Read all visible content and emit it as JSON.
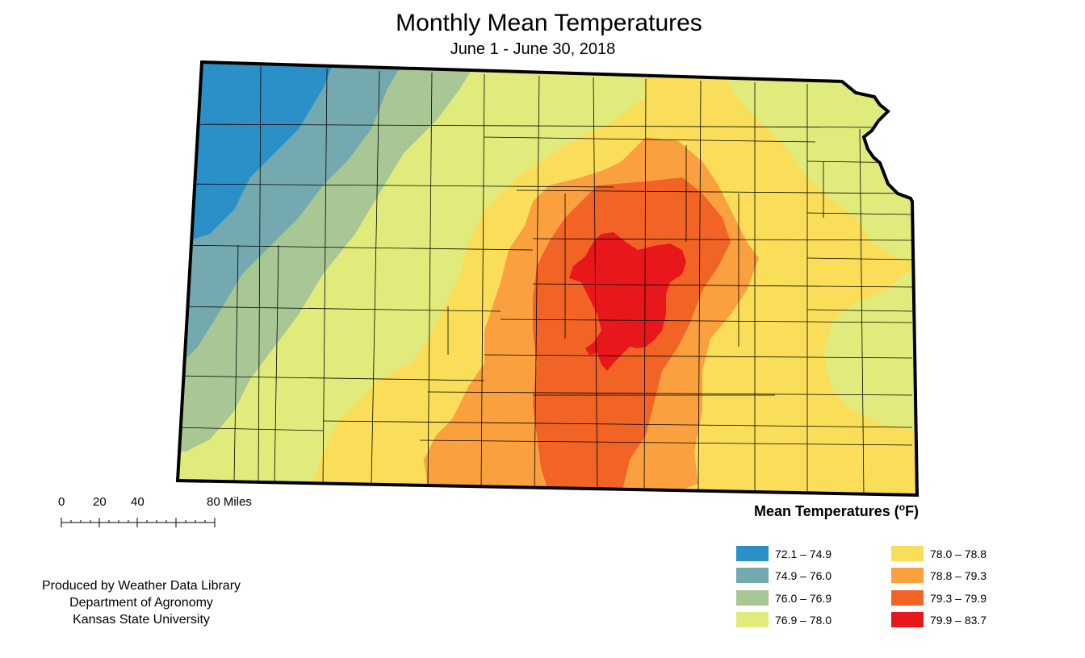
{
  "title": "Monthly Mean Temperatures",
  "subtitle": "June 1 - June 30, 2018",
  "scale_bar": {
    "labels": [
      "0",
      "20",
      "40",
      "80 Miles"
    ]
  },
  "credit": {
    "line1": "Produced by Weather Data Library",
    "line2": "Department of Agronomy",
    "line3": "Kansas State University"
  },
  "legend": {
    "title": "Mean Temperatures (",
    "unit_degree": "o",
    "unit_letter": "F)",
    "items": [
      {
        "label": "72.1 – 74.9",
        "color": "#2b8fc8"
      },
      {
        "label": "74.9 – 76.0",
        "color": "#74aaaf"
      },
      {
        "label": "76.0 – 76.9",
        "color": "#a8c795"
      },
      {
        "label": "76.9 – 78.0",
        "color": "#e1eb7c"
      },
      {
        "label": "78.0 – 78.8",
        "color": "#fade5a"
      },
      {
        "label": "78.8 – 79.3",
        "color": "#fba03f"
      },
      {
        "label": "79.3 – 79.9",
        "color": "#f26326"
      },
      {
        "label": "79.9 – 83.7",
        "color": "#e8171b"
      }
    ]
  },
  "map": {
    "region": "Kansas",
    "outline_color": "#000000"
  }
}
